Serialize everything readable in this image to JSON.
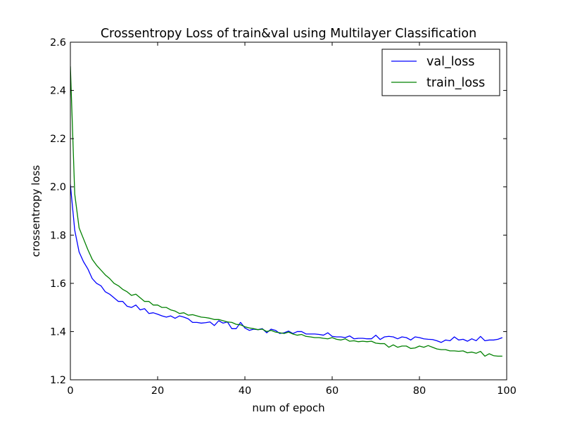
{
  "chart_data": {
    "type": "line",
    "title": "Crossentropy Loss of train&val using Multilayer Classification",
    "xlabel": "num of epoch",
    "ylabel": "crossentropy loss",
    "xlim": [
      0,
      100
    ],
    "ylim": [
      1.2,
      2.6
    ],
    "xticks": [
      "0",
      "20",
      "40",
      "60",
      "80",
      "100"
    ],
    "yticks": [
      "1.2",
      "1.4",
      "1.6",
      "1.8",
      "2.0",
      "2.2",
      "2.4",
      "2.6"
    ],
    "grid": false,
    "legend_position": "top-right",
    "series": [
      {
        "name": "val_loss",
        "color": "#0000ff",
        "x": [
          0,
          1,
          2,
          3,
          4,
          5,
          6,
          7,
          8,
          9,
          10,
          11,
          12,
          13,
          14,
          15,
          16,
          17,
          18,
          19,
          20,
          21,
          22,
          23,
          24,
          25,
          26,
          27,
          28,
          29,
          30,
          31,
          32,
          33,
          34,
          35,
          36,
          37,
          38,
          39,
          40,
          41,
          42,
          43,
          44,
          45,
          46,
          47,
          48,
          49,
          50,
          51,
          52,
          53,
          54,
          55,
          56,
          57,
          58,
          59,
          60,
          61,
          62,
          63,
          64,
          65,
          66,
          67,
          68,
          69,
          70,
          71,
          72,
          73,
          74,
          75,
          76,
          77,
          78,
          79,
          80,
          81,
          82,
          83,
          84,
          85,
          86,
          87,
          88,
          89,
          90,
          91,
          92,
          93,
          94,
          95,
          96,
          97,
          98,
          99
        ],
        "values": [
          2.01,
          1.82,
          1.73,
          1.69,
          1.66,
          1.62,
          1.6,
          1.59,
          1.565,
          1.555,
          1.54,
          1.525,
          1.525,
          1.505,
          1.5,
          1.51,
          1.49,
          1.495,
          1.475,
          1.478,
          1.472,
          1.465,
          1.46,
          1.465,
          1.455,
          1.465,
          1.46,
          1.453,
          1.438,
          1.438,
          1.435,
          1.437,
          1.44,
          1.425,
          1.445,
          1.435,
          1.44,
          1.412,
          1.412,
          1.438,
          1.415,
          1.405,
          1.41,
          1.408,
          1.412,
          1.395,
          1.41,
          1.405,
          1.392,
          1.395,
          1.402,
          1.392,
          1.4,
          1.4,
          1.39,
          1.39,
          1.39,
          1.388,
          1.385,
          1.395,
          1.38,
          1.378,
          1.378,
          1.375,
          1.382,
          1.37,
          1.372,
          1.372,
          1.37,
          1.37,
          1.385,
          1.367,
          1.378,
          1.38,
          1.378,
          1.37,
          1.378,
          1.375,
          1.365,
          1.378,
          1.375,
          1.37,
          1.368,
          1.367,
          1.362,
          1.355,
          1.365,
          1.362,
          1.378,
          1.365,
          1.368,
          1.36,
          1.37,
          1.362,
          1.38,
          1.362,
          1.365,
          1.365,
          1.368,
          1.375
        ]
      },
      {
        "name": "train_loss",
        "color": "#008000",
        "x": [
          0,
          1,
          2,
          3,
          4,
          5,
          6,
          7,
          8,
          9,
          10,
          11,
          12,
          13,
          14,
          15,
          16,
          17,
          18,
          19,
          20,
          21,
          22,
          23,
          24,
          25,
          26,
          27,
          28,
          29,
          30,
          31,
          32,
          33,
          34,
          35,
          36,
          37,
          38,
          39,
          40,
          41,
          42,
          43,
          44,
          45,
          46,
          47,
          48,
          49,
          50,
          51,
          52,
          53,
          54,
          55,
          56,
          57,
          58,
          59,
          60,
          61,
          62,
          63,
          64,
          65,
          66,
          67,
          68,
          69,
          70,
          71,
          72,
          73,
          74,
          75,
          76,
          77,
          78,
          79,
          80,
          81,
          82,
          83,
          84,
          85,
          86,
          87,
          88,
          89,
          90,
          91,
          92,
          93,
          94,
          95,
          96,
          97,
          98,
          99
        ],
        "values": [
          2.5,
          1.97,
          1.83,
          1.785,
          1.74,
          1.7,
          1.675,
          1.655,
          1.635,
          1.62,
          1.6,
          1.59,
          1.575,
          1.565,
          1.55,
          1.555,
          1.54,
          1.525,
          1.525,
          1.51,
          1.51,
          1.5,
          1.5,
          1.49,
          1.485,
          1.475,
          1.478,
          1.468,
          1.47,
          1.465,
          1.46,
          1.458,
          1.455,
          1.45,
          1.45,
          1.445,
          1.44,
          1.438,
          1.43,
          1.428,
          1.42,
          1.415,
          1.412,
          1.408,
          1.41,
          1.4,
          1.405,
          1.398,
          1.395,
          1.392,
          1.398,
          1.39,
          1.385,
          1.388,
          1.38,
          1.378,
          1.375,
          1.375,
          1.372,
          1.37,
          1.375,
          1.368,
          1.365,
          1.37,
          1.36,
          1.362,
          1.358,
          1.36,
          1.358,
          1.36,
          1.352,
          1.35,
          1.35,
          1.335,
          1.345,
          1.335,
          1.34,
          1.34,
          1.33,
          1.332,
          1.34,
          1.335,
          1.342,
          1.335,
          1.328,
          1.325,
          1.325,
          1.32,
          1.32,
          1.318,
          1.32,
          1.312,
          1.315,
          1.31,
          1.318,
          1.298,
          1.308,
          1.3,
          1.298,
          1.298
        ]
      }
    ]
  }
}
